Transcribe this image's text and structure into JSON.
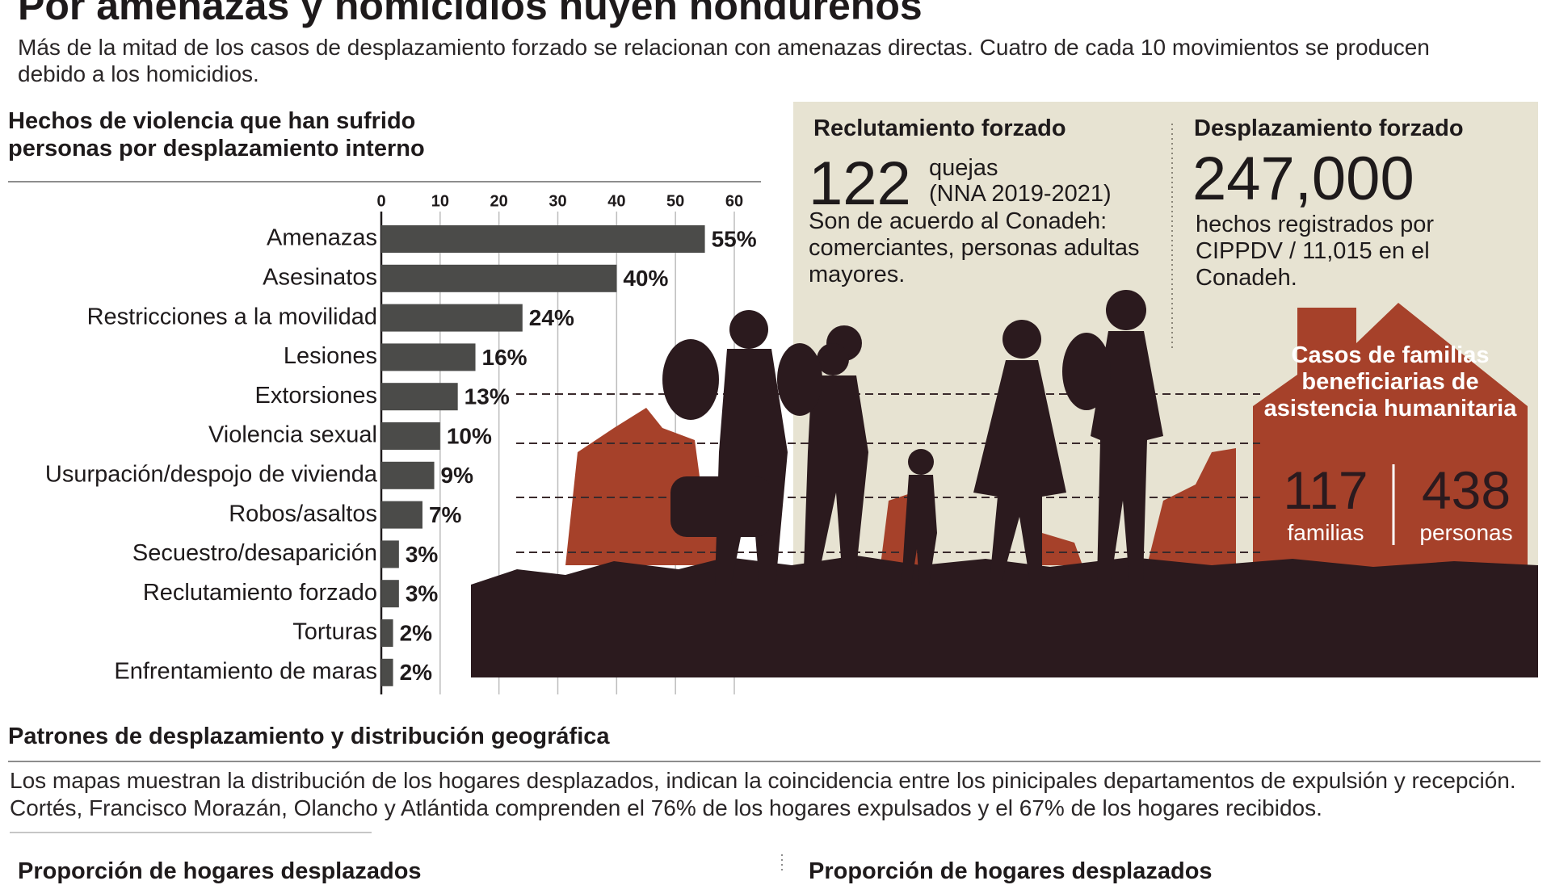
{
  "header": {
    "title": "Por amenazas y homicidios huyen hondureños",
    "subtitle": "Más de la mitad de los casos de desplazamiento forzado se relacionan con amenazas directas. Cuatro de cada 10 movimientos se producen debido a los homicidios."
  },
  "chart_data": {
    "type": "bar",
    "orientation": "horizontal",
    "title": "Hechos de violencia que han sufrido personas por desplazamiento interno",
    "categories": [
      "Amenazas",
      "Asesinatos",
      "Restricciones a la movilidad",
      "Lesiones",
      "Extorsiones",
      "Violencia sexual",
      "Usurpación/despojo de vivienda",
      "Robos/asaltos",
      "Secuestro/desaparición",
      "Reclutamiento forzado",
      "Torturas",
      "Enfrentamiento de maras"
    ],
    "values": [
      55,
      40,
      24,
      16,
      13,
      10,
      9,
      7,
      3,
      3,
      2,
      2
    ],
    "value_labels": [
      "55%",
      "40%",
      "24%",
      "16%",
      "13%",
      "10%",
      "9%",
      "7%",
      "3%",
      "3%",
      "2%",
      "2%"
    ],
    "color": "#4b4b49",
    "xlim": [
      0,
      60
    ],
    "xticks": [
      0,
      10,
      20,
      30,
      40,
      50,
      60
    ],
    "grid": true
  },
  "panels": {
    "recruitment": {
      "title": "Reclutamiento forzado",
      "number": 122,
      "unit": "quejas",
      "period": "(NNA 2019-2021)",
      "text": "Son de acuerdo al Conadeh: comerciantes, personas adultas mayores."
    },
    "displacement": {
      "title": "Desplazamiento forzado",
      "number": "247,000",
      "text": "hechos registrados por CIPPDV / 11,015 en el Conadeh."
    },
    "assistance": {
      "title": "Casos de familias beneficiarias de asistencia humanitaria",
      "families": 117,
      "families_label": "familias",
      "people": 438,
      "people_label": "personas"
    }
  },
  "section": {
    "title": "Patrones de desplazamiento y distribución geográfica",
    "text": "Los mapas muestran la distribución de los hogares desplazados, indican la coincidencia entre los pinicipales departamentos de expulsión  y recepción. Cortés, Francisco Morazán, Olancho y Atlántida comprenden el 76% de los hogares expulsados y el 67% de los hogares recibidos.",
    "map_titles": [
      "Proporción de hogares desplazados",
      "Proporción de hogares desplazados"
    ]
  }
}
